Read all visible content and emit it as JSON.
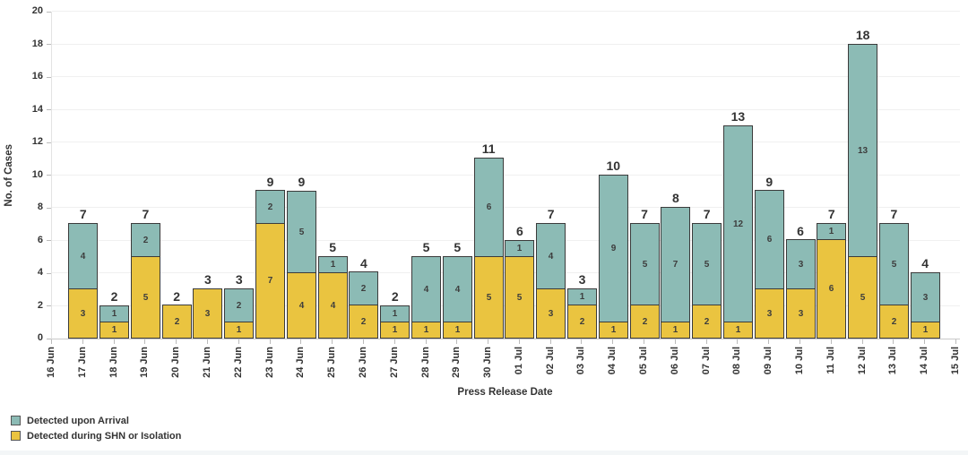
{
  "chart_data": {
    "type": "bar",
    "stacked": true,
    "title": "",
    "xlabel": "Press Release Date",
    "ylabel": "No. of Cases",
    "ylim": [
      0,
      20
    ],
    "ytick_step": 2,
    "grid": "horizontal",
    "legend_position": "bottom-left",
    "categories": [
      "16 Jun",
      "17 Jun",
      "18 Jun",
      "19 Jun",
      "20 Jun",
      "21 Jun",
      "22 Jun",
      "23 Jun",
      "24 Jun",
      "25 Jun",
      "26 Jun",
      "27 Jun",
      "28 Jun",
      "29 Jun",
      "30 Jun",
      "01 Jul",
      "02 Jul",
      "03 Jul",
      "04 Jul",
      "05 Jul",
      "06 Jul",
      "07 Jul",
      "08 Jul",
      "09 Jul",
      "10 Jul",
      "11 Jul",
      "12 Jul",
      "13 Jul",
      "14 Jul",
      "15 Jul"
    ],
    "series": [
      {
        "name": "Detected during SHN or Isolation",
        "color": "#EAC440",
        "values": [
          0,
          3,
          1,
          5,
          2,
          3,
          1,
          7,
          4,
          4,
          2,
          1,
          1,
          1,
          5,
          5,
          3,
          2,
          1,
          2,
          1,
          2,
          1,
          3,
          3,
          6,
          5,
          2,
          1,
          0
        ]
      },
      {
        "name": "Detected upon Arrival",
        "color": "#8CBBB5",
        "values": [
          0,
          4,
          1,
          2,
          0,
          0,
          2,
          2,
          5,
          1,
          2,
          1,
          4,
          4,
          6,
          1,
          4,
          1,
          9,
          5,
          7,
          5,
          12,
          6,
          3,
          1,
          13,
          5,
          3,
          0
        ]
      }
    ],
    "totals": [
      0,
      7,
      2,
      7,
      2,
      3,
      3,
      9,
      9,
      5,
      4,
      2,
      5,
      5,
      11,
      6,
      7,
      3,
      10,
      7,
      8,
      7,
      13,
      9,
      6,
      7,
      18,
      7,
      4,
      0
    ]
  },
  "legend": {
    "items": [
      {
        "label": "Detected upon Arrival",
        "color": "#8CBBB5"
      },
      {
        "label": "Detected during SHN or Isolation",
        "color": "#EAC440"
      }
    ]
  }
}
